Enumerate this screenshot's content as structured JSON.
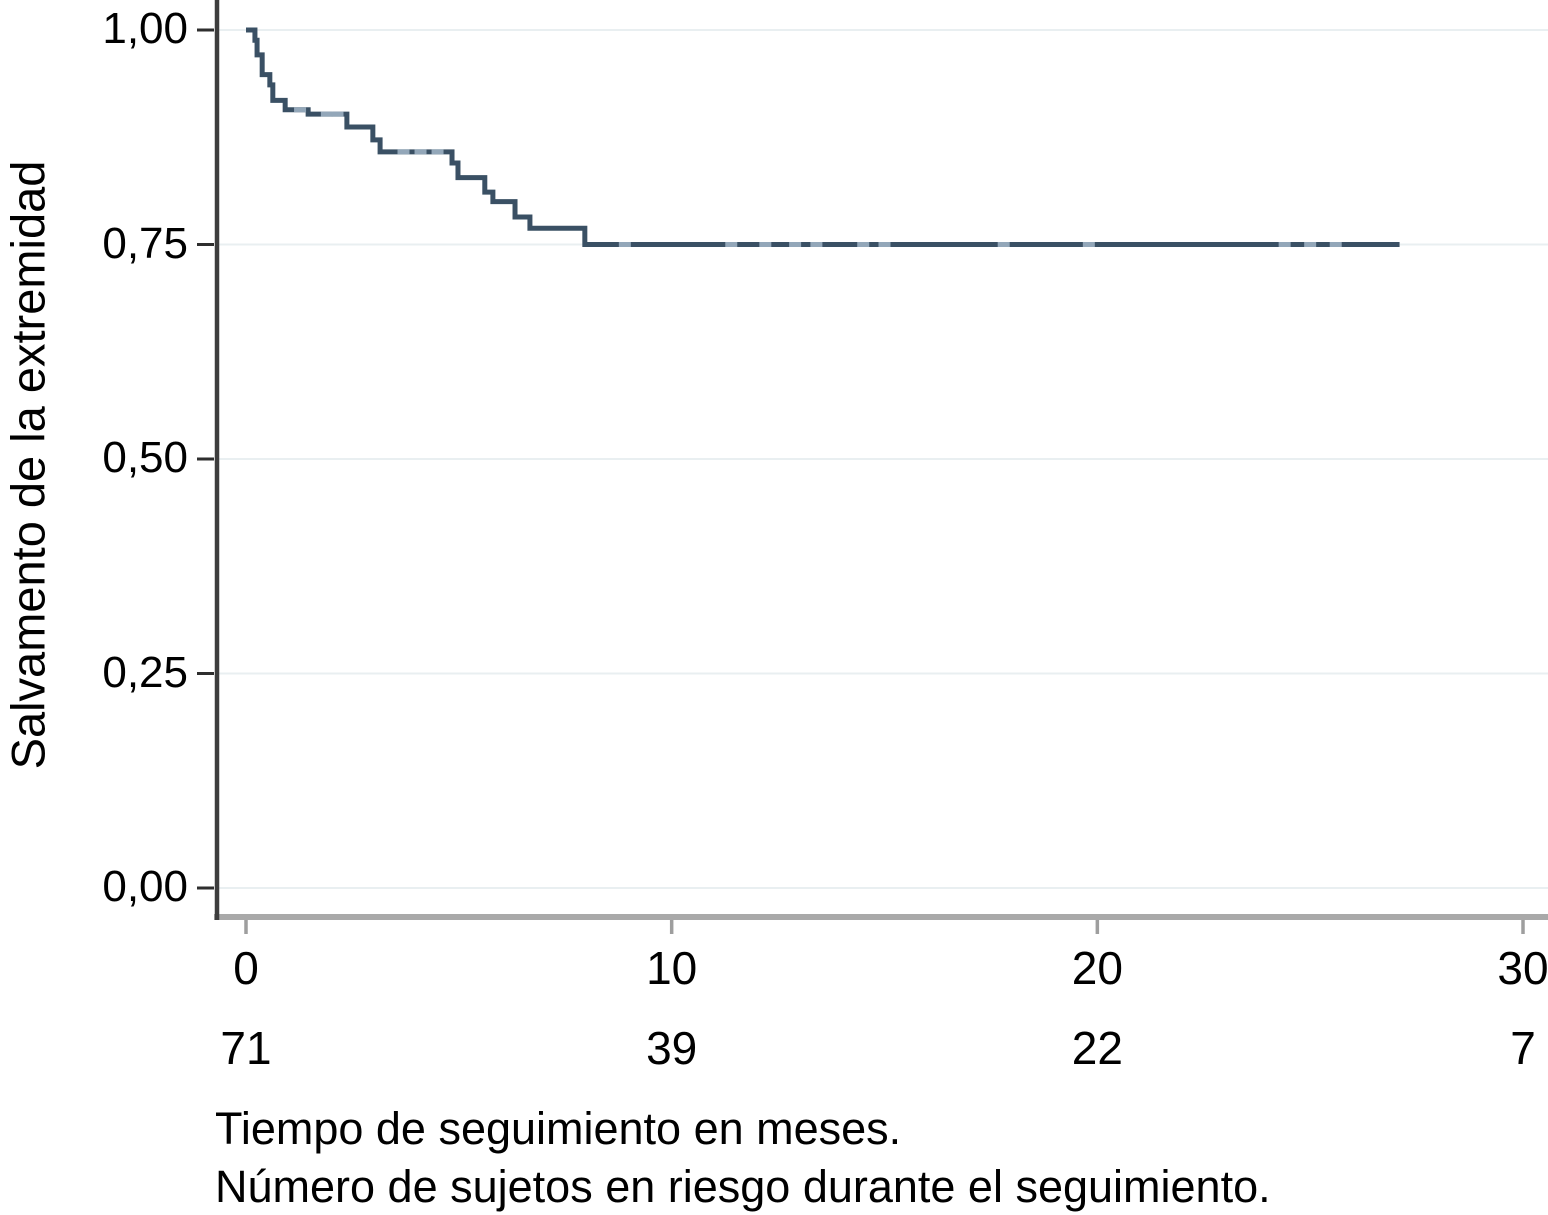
{
  "chart_data": {
    "type": "line",
    "subtype": "kaplan-meier-step",
    "title": "",
    "ylabel": "Salvamento de la extremidad",
    "caption_lines": [
      "Tiempo de seguimiento en meses.",
      "Número de sujetos en riesgo durante el seguimiento."
    ],
    "xlim": [
      0,
      30
    ],
    "ylim": [
      0.0,
      1.0
    ],
    "grid": true,
    "legend_position": "none",
    "x_axis": {
      "ticks": [
        {
          "value": 0,
          "label": "0"
        },
        {
          "value": 10,
          "label": "10"
        },
        {
          "value": 20,
          "label": "20"
        },
        {
          "value": 30,
          "label": "30"
        }
      ]
    },
    "y_axis": {
      "ticks": [
        {
          "value": 1.0,
          "label": "1,00"
        },
        {
          "value": 0.75,
          "label": "0,75"
        },
        {
          "value": 0.5,
          "label": "0,50"
        },
        {
          "value": 0.25,
          "label": "0,25"
        },
        {
          "value": 0.0,
          "label": "0,00"
        }
      ]
    },
    "at_risk": {
      "times": [
        0,
        10,
        20,
        30
      ],
      "counts": [
        "71",
        "39",
        "22",
        "7"
      ]
    },
    "series": [
      {
        "name": "Salvamento de la extremidad",
        "end_t": 27.1,
        "steps": [
          {
            "t": 0.0,
            "s": 1.0
          },
          {
            "t": 0.21,
            "s": 0.988
          },
          {
            "t": 0.26,
            "s": 0.971
          },
          {
            "t": 0.38,
            "s": 0.948
          },
          {
            "t": 0.56,
            "s": 0.936
          },
          {
            "t": 0.63,
            "s": 0.918
          },
          {
            "t": 0.92,
            "s": 0.907
          },
          {
            "t": 1.46,
            "s": 0.902
          },
          {
            "t": 2.37,
            "s": 0.887
          },
          {
            "t": 2.98,
            "s": 0.872
          },
          {
            "t": 3.15,
            "s": 0.858
          },
          {
            "t": 4.84,
            "s": 0.845
          },
          {
            "t": 4.98,
            "s": 0.828
          },
          {
            "t": 5.61,
            "s": 0.811
          },
          {
            "t": 5.8,
            "s": 0.8
          },
          {
            "t": 6.32,
            "s": 0.782
          },
          {
            "t": 6.67,
            "s": 0.769
          },
          {
            "t": 7.96,
            "s": 0.75
          }
        ],
        "censor_marks": [
          {
            "t": 1.27,
            "s": 0.907
          },
          {
            "t": 1.9,
            "s": 0.902
          },
          {
            "t": 2.15,
            "s": 0.902
          },
          {
            "t": 3.7,
            "s": 0.858
          },
          {
            "t": 4.1,
            "s": 0.858
          },
          {
            "t": 4.5,
            "s": 0.858
          },
          {
            "t": 8.9,
            "s": 0.75
          },
          {
            "t": 11.4,
            "s": 0.75
          },
          {
            "t": 12.2,
            "s": 0.75
          },
          {
            "t": 12.9,
            "s": 0.75
          },
          {
            "t": 13.4,
            "s": 0.75
          },
          {
            "t": 14.5,
            "s": 0.75
          },
          {
            "t": 15.0,
            "s": 0.75
          },
          {
            "t": 17.8,
            "s": 0.75
          },
          {
            "t": 19.8,
            "s": 0.75
          },
          {
            "t": 24.4,
            "s": 0.75
          },
          {
            "t": 25.0,
            "s": 0.75
          },
          {
            "t": 25.6,
            "s": 0.75
          }
        ]
      }
    ],
    "colors": {
      "line": "#3a5064",
      "censor": "#93a7b9",
      "grid": "#e9eff1",
      "y_axis": "#3d3d3d",
      "x_axis": "#a9a9a9",
      "y_tick": "#2e2e2e",
      "x_tick": "#9e9e9e",
      "text": "#000000",
      "background": "#ffffff"
    }
  }
}
